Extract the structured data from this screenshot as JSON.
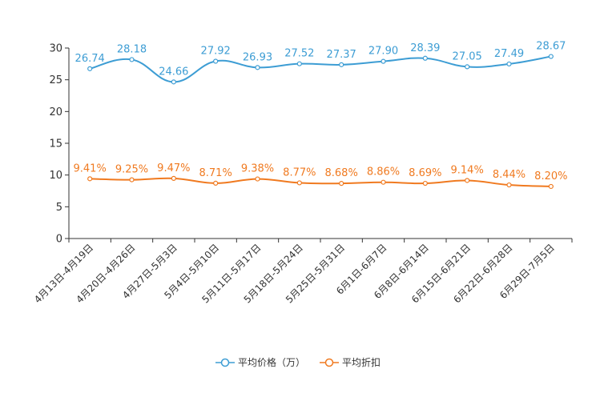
{
  "chart_data": {
    "type": "line",
    "title": "",
    "xlabel": "",
    "ylabel": "",
    "ylim": [
      0,
      30
    ],
    "yticks": [
      0,
      5,
      10,
      15,
      20,
      25,
      30
    ],
    "categories": [
      "4月13日-4月19日",
      "4月20日-4月26日",
      "4月27日-5月3日",
      "5月4日-5月10日",
      "5月11日-5月17日",
      "5月18日-5月24日",
      "5月25日-5月31日",
      "6月1日-6月7日",
      "6月8日-6月14日",
      "6月15日-6月21日",
      "6月22日-6月28日",
      "6月29日-7月5日"
    ],
    "series": [
      {
        "name": "平均价格（万）",
        "color": "#3d9dd4",
        "values": [
          26.74,
          28.18,
          24.66,
          27.92,
          26.93,
          27.52,
          27.37,
          27.9,
          28.39,
          27.05,
          27.49,
          28.67
        ],
        "labels": [
          "26.74",
          "28.18",
          "24.66",
          "27.92",
          "26.93",
          "27.52",
          "27.37",
          "27.90",
          "28.39",
          "27.05",
          "27.49",
          "28.67"
        ]
      },
      {
        "name": "平均折扣",
        "color": "#f07a20",
        "values": [
          9.41,
          9.25,
          9.47,
          8.71,
          9.38,
          8.77,
          8.68,
          8.86,
          8.69,
          9.14,
          8.44,
          8.2
        ],
        "labels": [
          "9.41%",
          "9.25%",
          "9.47%",
          "8.71%",
          "9.38%",
          "8.77%",
          "8.68%",
          "8.86%",
          "8.69%",
          "9.14%",
          "8.44%",
          "8.20%"
        ]
      }
    ],
    "legend_position": "bottom-center"
  }
}
